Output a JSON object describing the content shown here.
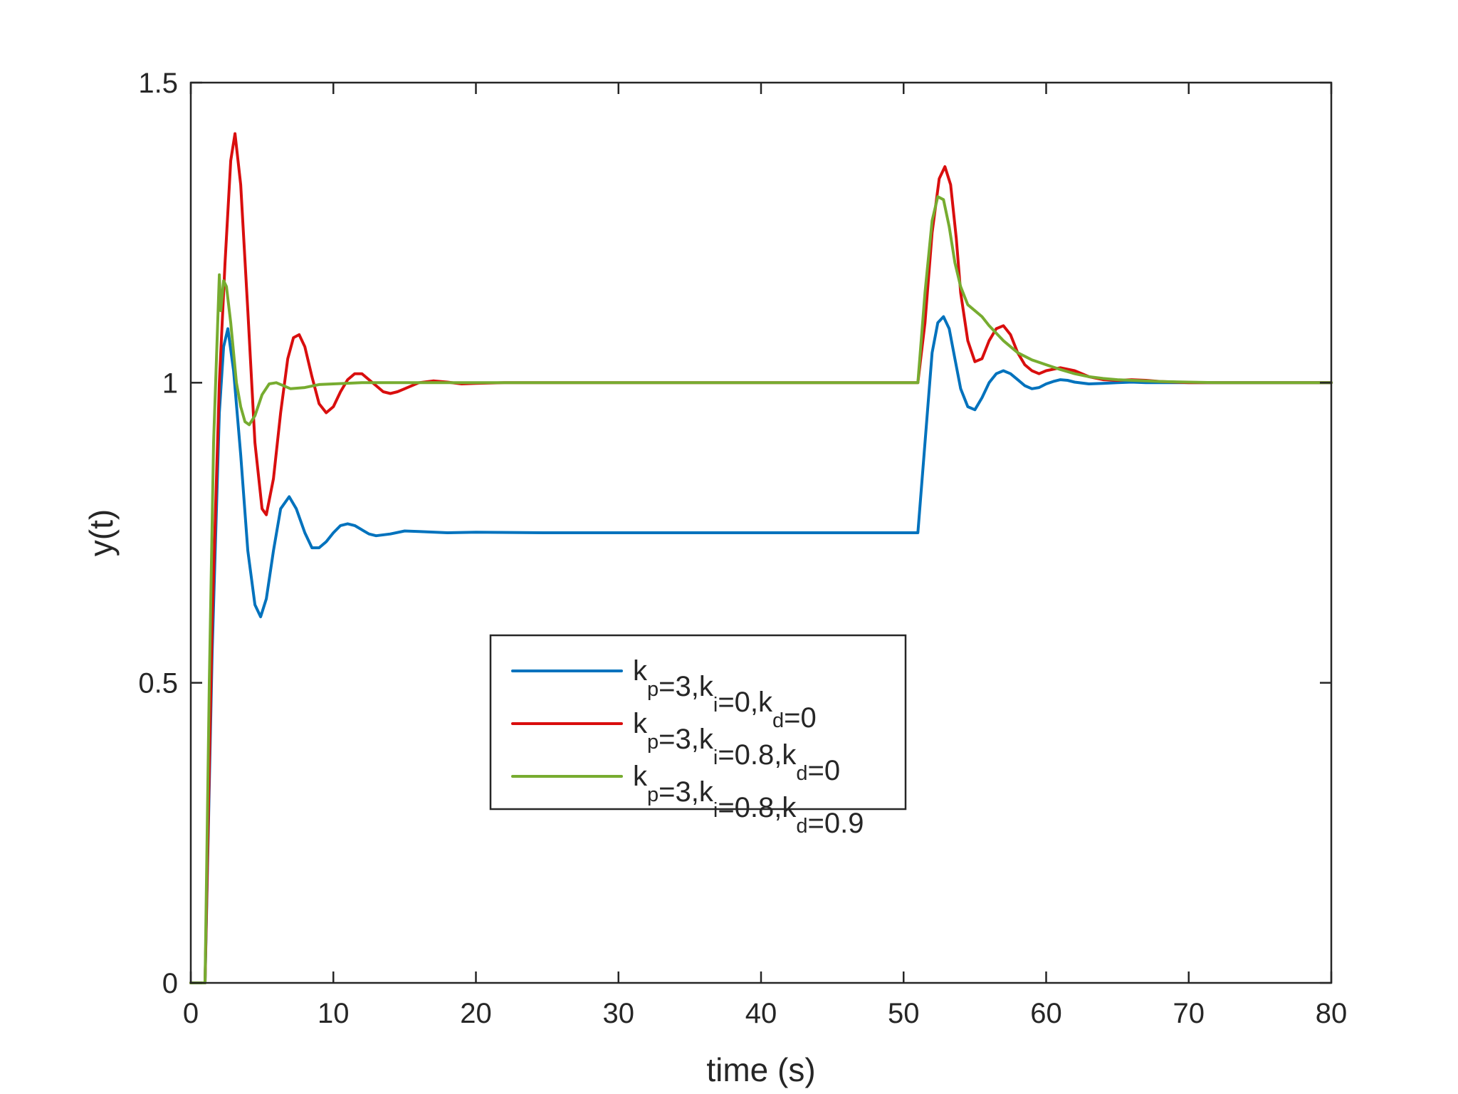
{
  "chart_data": {
    "type": "line",
    "title": "",
    "xlabel": "time (s)",
    "ylabel": "y(t)",
    "xlim": [
      0,
      80
    ],
    "ylim": [
      0,
      1.5
    ],
    "xticks": [
      0,
      10,
      20,
      30,
      40,
      50,
      60,
      70,
      80
    ],
    "xtick_labels": [
      "0",
      "10",
      "20",
      "30",
      "40",
      "50",
      "60",
      "70",
      "80"
    ],
    "yticks": [
      0,
      0.5,
      1,
      1.5
    ],
    "ytick_labels": [
      "0",
      "0.5",
      "1",
      "1.5"
    ],
    "grid": false,
    "legend_position": "center",
    "series": [
      {
        "name": "k_p=3,k_i=0,k_d=0",
        "legend": [
          [
            "k",
            "p"
          ],
          [
            "=3,k",
            "i"
          ],
          [
            "=0,k",
            "d"
          ],
          [
            "=0",
            ""
          ]
        ],
        "color": "#0072BD",
        "x": [
          0,
          1,
          1.5,
          2,
          2.3,
          2.6,
          3,
          3.5,
          4,
          4.5,
          4.9,
          5.3,
          5.8,
          6.3,
          6.9,
          7.4,
          8,
          8.5,
          9,
          9.5,
          10,
          10.5,
          11,
          11.5,
          12,
          12.5,
          13,
          14,
          15,
          16,
          18,
          20,
          25,
          30,
          40,
          50,
          51,
          51.5,
          52,
          52.4,
          52.8,
          53.2,
          53.6,
          54,
          54.5,
          55,
          55.5,
          56,
          56.5,
          57,
          57.5,
          58,
          58.5,
          59,
          59.5,
          60,
          60.5,
          61,
          61.5,
          62,
          63,
          64,
          65,
          66,
          67,
          68,
          70,
          72,
          75,
          80
        ],
        "y": [
          0,
          0,
          0.55,
          0.95,
          1.06,
          1.09,
          1.02,
          0.88,
          0.72,
          0.63,
          0.61,
          0.64,
          0.72,
          0.79,
          0.81,
          0.79,
          0.75,
          0.725,
          0.725,
          0.735,
          0.75,
          0.762,
          0.765,
          0.762,
          0.755,
          0.748,
          0.745,
          0.748,
          0.753,
          0.752,
          0.75,
          0.751,
          0.75,
          0.75,
          0.75,
          0.75,
          0.75,
          0.9,
          1.05,
          1.1,
          1.11,
          1.09,
          1.04,
          0.99,
          0.96,
          0.955,
          0.975,
          1.0,
          1.015,
          1.02,
          1.015,
          1.005,
          0.995,
          0.99,
          0.992,
          0.998,
          1.002,
          1.005,
          1.004,
          1.001,
          0.998,
          0.999,
          1.0,
          1.001,
          1.0,
          1.0,
          1.0,
          1.0,
          1.0,
          1.0
        ]
      },
      {
        "name": "k_p=3,k_i=0.8,k_d=0",
        "legend": [
          [
            "k",
            "p"
          ],
          [
            "=3,k",
            "i"
          ],
          [
            "=0.8,k",
            "d"
          ],
          [
            "=0",
            ""
          ]
        ],
        "color": "#D90E0E",
        "x": [
          0,
          1,
          1.5,
          2,
          2.4,
          2.8,
          3.1,
          3.5,
          4,
          4.5,
          5,
          5.3,
          5.8,
          6.3,
          6.8,
          7.2,
          7.6,
          8,
          8.5,
          9,
          9.5,
          10,
          10.5,
          11,
          11.5,
          12,
          12.5,
          13,
          13.5,
          14,
          14.5,
          15,
          16,
          17,
          18,
          19,
          20,
          22,
          25,
          30,
          40,
          50,
          51,
          51.5,
          52,
          52.5,
          52.9,
          53.3,
          53.7,
          54,
          54.5,
          55,
          55.5,
          56,
          56.5,
          57,
          57.5,
          58,
          58.5,
          59,
          59.5,
          60,
          61,
          62,
          63,
          64,
          65,
          66,
          67,
          68,
          70,
          72,
          75,
          80
        ],
        "y": [
          0,
          0,
          0.6,
          1.0,
          1.2,
          1.37,
          1.415,
          1.33,
          1.12,
          0.9,
          0.79,
          0.78,
          0.84,
          0.95,
          1.04,
          1.075,
          1.08,
          1.06,
          1.01,
          0.965,
          0.95,
          0.96,
          0.985,
          1.005,
          1.015,
          1.015,
          1.005,
          0.995,
          0.985,
          0.982,
          0.985,
          0.99,
          1.0,
          1.003,
          1.001,
          0.998,
          0.999,
          1.0,
          1.0,
          1.0,
          1.0,
          1.0,
          1.0,
          1.1,
          1.25,
          1.34,
          1.36,
          1.33,
          1.24,
          1.15,
          1.07,
          1.035,
          1.04,
          1.07,
          1.09,
          1.095,
          1.08,
          1.05,
          1.03,
          1.02,
          1.015,
          1.02,
          1.025,
          1.02,
          1.01,
          1.005,
          1.004,
          1.005,
          1.004,
          1.002,
          1.0,
          1.0,
          1.0,
          1.0
        ]
      },
      {
        "name": "k_p=3,k_i=0.8,k_d=0.9",
        "legend": [
          [
            "k",
            "p"
          ],
          [
            "=3,k",
            "i"
          ],
          [
            "=0.8,k",
            "d"
          ],
          [
            "=0.9",
            ""
          ]
        ],
        "color": "#77AC30",
        "x": [
          0,
          1,
          1.3,
          1.6,
          2,
          2.1,
          2.3,
          2.5,
          2.8,
          3,
          3.2,
          3.5,
          3.8,
          4.1,
          4.5,
          5,
          5.5,
          6,
          7,
          8,
          9,
          10,
          12,
          15,
          20,
          30,
          40,
          50,
          51,
          51.5,
          52,
          52.4,
          52.8,
          53.2,
          53.6,
          54,
          54.5,
          55,
          55.5,
          56,
          57,
          58,
          59,
          60,
          61,
          62,
          63,
          64,
          65,
          66,
          68,
          70,
          72,
          75,
          80
        ],
        "y": [
          0,
          0,
          0.5,
          0.9,
          1.18,
          1.12,
          1.17,
          1.16,
          1.1,
          1.05,
          1.0,
          0.96,
          0.935,
          0.93,
          0.945,
          0.98,
          0.998,
          1.0,
          0.99,
          0.992,
          0.997,
          0.998,
          1.0,
          1.0,
          1.0,
          1.0,
          1.0,
          1.0,
          1.0,
          1.15,
          1.27,
          1.31,
          1.305,
          1.26,
          1.2,
          1.16,
          1.13,
          1.12,
          1.11,
          1.095,
          1.07,
          1.05,
          1.038,
          1.03,
          1.022,
          1.015,
          1.01,
          1.007,
          1.005,
          1.004,
          1.002,
          1.001,
          1.0,
          1.0,
          1.0
        ]
      }
    ]
  }
}
